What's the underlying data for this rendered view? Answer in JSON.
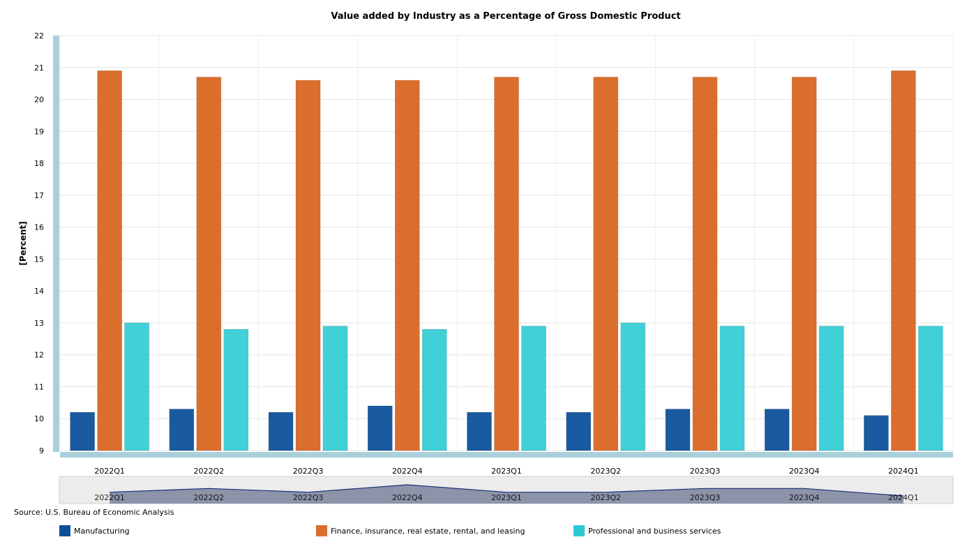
{
  "chart_data": {
    "type": "bar",
    "title": "Value added by Industry as a Percentage of Gross Domestic Product",
    "ylabel": "[Percent]",
    "xlabel": "",
    "ylim": [
      9,
      22
    ],
    "yticks": [
      "9",
      "10",
      "11",
      "12",
      "13",
      "14",
      "15",
      "16",
      "17",
      "18",
      "19",
      "20",
      "21",
      "22"
    ],
    "categories": [
      "2022Q1",
      "2022Q2",
      "2022Q3",
      "2022Q4",
      "2023Q1",
      "2023Q2",
      "2023Q3",
      "2023Q4",
      "2024Q1"
    ],
    "series": [
      {
        "name": "Manufacturing",
        "color": "#1a5aa0",
        "values": [
          10.2,
          10.3,
          10.2,
          10.4,
          10.2,
          10.2,
          10.3,
          10.3,
          10.1
        ]
      },
      {
        "name": "Finance, insurance, real estate, rental, and leasing",
        "color": "#dc6e2d",
        "values": [
          20.9,
          20.7,
          20.6,
          20.6,
          20.7,
          20.7,
          20.7,
          20.7,
          20.9
        ]
      },
      {
        "name": "Professional and business services",
        "color": "#40d0d8",
        "values": [
          13.0,
          12.8,
          12.9,
          12.8,
          12.9,
          13.0,
          12.9,
          12.9,
          12.9
        ]
      }
    ],
    "grid": true,
    "legend_position": "bottom",
    "navigator": true
  },
  "source": "Source: U.S. Bureau of Economic Analysis",
  "legend_swatch_colors": [
    "#0f4f95",
    "#dc6e2d",
    "#2ec9d2"
  ]
}
